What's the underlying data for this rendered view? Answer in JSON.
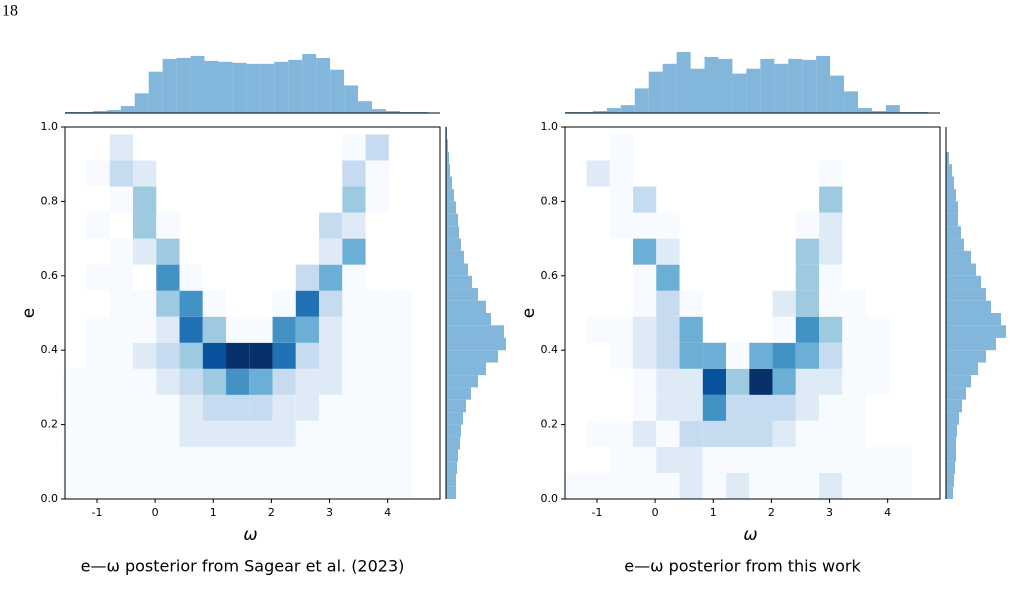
{
  "page_number": "18",
  "chart_data": [
    {
      "type": "hist2d",
      "caption": "e—ω posterior from Sagear et al. (2023)",
      "xlabel": "ω",
      "ylabel": "e",
      "xlim": [
        -1.55,
        4.9
      ],
      "ylim": [
        0,
        1
      ],
      "xticks": [
        -1,
        0,
        1,
        2,
        3,
        4
      ],
      "yticks": [
        {
          "value": 0,
          "label": "0.0"
        },
        0.2,
        0.4,
        0.6,
        0.8,
        {
          "value": 1,
          "label": "1.0"
        }
      ],
      "xbins": [
        -1.58,
        -1.18,
        -0.78,
        -0.38,
        0.02,
        0.42,
        0.82,
        1.22,
        1.62,
        2.02,
        2.42,
        2.82,
        3.22,
        3.62,
        4.02,
        4.42
      ],
      "ybins": [
        0,
        0.07,
        0.14,
        0.21,
        0.28,
        0.35,
        0.42,
        0.49,
        0.56,
        0.63,
        0.7,
        0.77,
        0.84,
        0.91,
        0.98
      ],
      "cmap": [
        "#f7fbff",
        "#deebf7",
        "#c6dbef",
        "#9ecae1",
        "#6baed6",
        "#4292c6",
        "#2171b5",
        "#08519c",
        "#08306b"
      ],
      "z": [
        [
          1,
          1,
          1,
          1,
          1,
          1,
          1,
          1,
          1,
          1,
          1,
          1,
          1,
          1,
          1
        ],
        [
          1,
          1,
          1,
          1,
          1,
          1,
          1,
          1,
          1,
          1,
          1,
          1,
          1,
          1,
          1
        ],
        [
          1,
          1,
          1,
          1,
          1,
          2,
          2,
          2,
          2,
          2,
          1,
          1,
          1,
          1,
          1
        ],
        [
          1,
          1,
          1,
          1,
          1,
          2,
          3,
          3,
          3,
          2,
          2,
          1,
          1,
          1,
          1
        ],
        [
          1,
          1,
          1,
          1,
          2,
          3,
          4,
          6,
          5,
          3,
          2,
          2,
          1,
          1,
          1
        ],
        [
          0,
          1,
          1,
          2,
          3,
          4,
          8,
          9,
          9,
          7,
          3,
          2,
          1,
          1,
          1
        ],
        [
          0,
          1,
          1,
          1,
          2,
          7,
          4,
          1,
          1,
          6,
          5,
          2,
          1,
          1,
          1
        ],
        [
          0,
          0,
          1,
          1,
          4,
          6,
          1,
          0,
          0,
          1,
          7,
          3,
          1,
          1,
          1
        ],
        [
          0,
          1,
          1,
          0,
          6,
          1,
          0,
          0,
          0,
          0,
          3,
          5,
          1,
          0,
          0
        ],
        [
          0,
          0,
          1,
          2,
          4,
          0,
          0,
          0,
          0,
          0,
          0,
          2,
          5,
          0,
          0
        ],
        [
          0,
          1,
          0,
          4,
          1,
          0,
          0,
          0,
          0,
          0,
          0,
          3,
          2,
          0,
          0
        ],
        [
          0,
          0,
          1,
          4,
          0,
          0,
          0,
          0,
          0,
          0,
          0,
          0,
          4,
          1,
          0
        ],
        [
          0,
          1,
          3,
          2,
          0,
          0,
          0,
          0,
          0,
          0,
          0,
          0,
          3,
          1,
          0
        ],
        [
          0,
          0,
          2,
          0,
          0,
          0,
          0,
          0,
          0,
          0,
          0,
          0,
          1,
          3,
          0
        ]
      ],
      "top_hist": {
        "color": "#82b6da",
        "ylim": [
          0,
          62
        ],
        "bins": [
          -1.55,
          -1.31,
          -1.07,
          -0.83,
          -0.59,
          -0.35,
          -0.11,
          0.13,
          0.37,
          0.61,
          0.85,
          1.09,
          1.33,
          1.57,
          1.81,
          2.05,
          2.29,
          2.53,
          2.77,
          3.01,
          3.25,
          3.49,
          3.73,
          3.97,
          4.21,
          4.45,
          4.69
        ],
        "values": [
          1,
          1,
          2,
          3,
          7,
          20,
          42,
          55,
          56,
          58,
          53,
          52,
          51,
          50,
          50,
          52,
          54,
          60,
          56,
          44,
          28,
          12,
          4,
          2,
          1,
          1
        ]
      },
      "right_hist": {
        "color": "#82b6da",
        "xlim": [
          0,
          62
        ],
        "bins": [
          0,
          0.033,
          0.067,
          0.1,
          0.133,
          0.167,
          0.2,
          0.233,
          0.267,
          0.3,
          0.333,
          0.367,
          0.4,
          0.433,
          0.467,
          0.5,
          0.533,
          0.567,
          0.6,
          0.633,
          0.667,
          0.7,
          0.733,
          0.767,
          0.8,
          0.833,
          0.867,
          0.9,
          0.933,
          0.967,
          1
        ],
        "values": [
          10,
          10,
          11,
          12,
          14,
          15,
          17,
          20,
          25,
          32,
          40,
          52,
          60,
          58,
          45,
          40,
          32,
          26,
          22,
          18,
          15,
          13,
          12,
          10,
          8,
          6,
          4,
          3,
          2,
          1
        ]
      }
    },
    {
      "type": "hist2d",
      "caption": "e—ω posterior from this work",
      "xlabel": "ω",
      "ylabel": "e",
      "xlim": [
        -1.55,
        4.9
      ],
      "ylim": [
        0,
        1
      ],
      "xticks": [
        -1,
        0,
        1,
        2,
        3,
        4
      ],
      "yticks": [
        {
          "value": 0,
          "label": "0.0"
        },
        0.2,
        0.4,
        0.6,
        0.8,
        {
          "value": 1,
          "label": "1.0"
        }
      ],
      "xbins": [
        -1.58,
        -1.18,
        -0.78,
        -0.38,
        0.02,
        0.42,
        0.82,
        1.22,
        1.62,
        2.02,
        2.42,
        2.82,
        3.22,
        3.62,
        4.02,
        4.42
      ],
      "ybins": [
        0,
        0.07,
        0.14,
        0.21,
        0.28,
        0.35,
        0.42,
        0.49,
        0.56,
        0.63,
        0.7,
        0.77,
        0.84,
        0.91,
        0.98
      ],
      "cmap": [
        "#f7fbff",
        "#deebf7",
        "#c6dbef",
        "#9ecae1",
        "#6baed6",
        "#4292c6",
        "#2171b5",
        "#08519c",
        "#08306b"
      ],
      "z": [
        [
          1,
          1,
          1,
          1,
          1,
          2,
          1,
          2,
          1,
          1,
          1,
          2,
          1,
          1,
          1
        ],
        [
          0,
          0,
          1,
          1,
          2,
          2,
          1,
          1,
          1,
          1,
          1,
          1,
          1,
          1,
          1
        ],
        [
          0,
          1,
          1,
          2,
          1,
          3,
          3,
          3,
          3,
          2,
          1,
          1,
          1,
          0,
          0
        ],
        [
          0,
          0,
          0,
          1,
          2,
          2,
          6,
          3,
          3,
          3,
          2,
          1,
          1,
          0,
          0
        ],
        [
          0,
          0,
          0,
          1,
          2,
          2,
          8,
          4,
          9,
          5,
          2,
          2,
          1,
          1,
          0
        ],
        [
          0,
          0,
          1,
          2,
          3,
          5,
          5,
          1,
          5,
          6,
          5,
          3,
          1,
          1,
          0
        ],
        [
          0,
          1,
          1,
          2,
          3,
          5,
          0,
          0,
          0,
          1,
          6,
          4,
          1,
          1,
          0
        ],
        [
          0,
          0,
          0,
          1,
          3,
          1,
          0,
          0,
          0,
          2,
          4,
          1,
          1,
          0,
          0
        ],
        [
          0,
          0,
          0,
          1,
          5,
          0,
          0,
          0,
          0,
          0,
          4,
          1,
          0,
          0,
          0
        ],
        [
          0,
          0,
          0,
          5,
          2,
          0,
          0,
          0,
          0,
          0,
          4,
          2,
          0,
          0,
          0
        ],
        [
          0,
          0,
          1,
          1,
          1,
          0,
          0,
          0,
          0,
          0,
          1,
          2,
          0,
          0,
          0
        ],
        [
          0,
          0,
          1,
          3,
          0,
          0,
          0,
          0,
          0,
          0,
          0,
          4,
          0,
          0,
          0
        ],
        [
          0,
          2,
          1,
          0,
          0,
          0,
          0,
          0,
          0,
          0,
          0,
          1,
          0,
          0,
          0
        ],
        [
          0,
          0,
          1,
          0,
          0,
          0,
          0,
          0,
          0,
          0,
          0,
          0,
          0,
          0,
          0
        ]
      ],
      "top_hist": {
        "color": "#82b6da",
        "ylim": [
          0,
          62
        ],
        "bins": [
          -1.55,
          -1.31,
          -1.07,
          -0.83,
          -0.59,
          -0.35,
          -0.11,
          0.13,
          0.37,
          0.61,
          0.85,
          1.09,
          1.33,
          1.57,
          1.81,
          2.05,
          2.29,
          2.53,
          2.77,
          3.01,
          3.25,
          3.49,
          3.73,
          3.97,
          4.21,
          4.45,
          4.69
        ],
        "values": [
          1,
          1,
          2,
          5,
          8,
          25,
          42,
          50,
          62,
          45,
          57,
          55,
          40,
          45,
          55,
          50,
          55,
          54,
          58,
          38,
          22,
          5,
          2,
          8,
          1,
          1
        ]
      },
      "right_hist": {
        "color": "#82b6da",
        "xlim": [
          0,
          62
        ],
        "bins": [
          0,
          0.033,
          0.067,
          0.1,
          0.133,
          0.167,
          0.2,
          0.233,
          0.267,
          0.3,
          0.333,
          0.367,
          0.4,
          0.433,
          0.467,
          0.5,
          0.533,
          0.567,
          0.6,
          0.633,
          0.667,
          0.7,
          0.733,
          0.767,
          0.8,
          0.833,
          0.867,
          0.9,
          0.933,
          0.967,
          1
        ],
        "values": [
          7,
          8,
          9,
          10,
          10,
          11,
          13,
          16,
          20,
          25,
          32,
          40,
          50,
          60,
          55,
          45,
          40,
          35,
          30,
          25,
          18,
          15,
          12,
          12,
          10,
          8,
          6,
          3,
          0,
          0
        ]
      }
    }
  ]
}
